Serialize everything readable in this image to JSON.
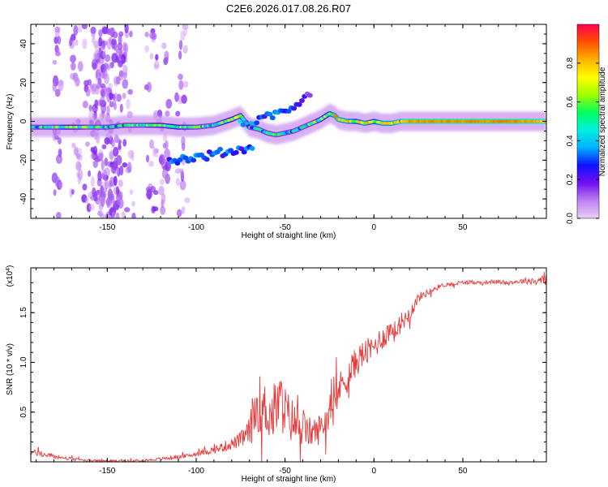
{
  "title": "C2E6.2026.017.08.26.R07",
  "chart_data": [
    {
      "type": "heatmap",
      "xlabel": "Height of straight line (km)",
      "ylabel": "Frequency (Hz)",
      "xlim": [
        -193,
        97
      ],
      "ylim": [
        -50,
        50
      ],
      "xticks": [
        "-150",
        "-100",
        "-50",
        "0",
        "50"
      ],
      "xtick_values": [
        -150,
        -100,
        -50,
        0,
        50
      ],
      "yticks": [
        "40",
        "20",
        "0",
        "-20",
        "-40"
      ],
      "ytick_values": [
        40,
        20,
        0,
        -20,
        -40
      ],
      "colorbar": {
        "label": "Normalized spectral amplitude",
        "range": [
          0,
          1
        ],
        "ticks": [
          "0.0",
          "0.2",
          "0.4",
          "0.6",
          "0.8"
        ],
        "tick_values": [
          0,
          0.2,
          0.4,
          0.6,
          0.8
        ],
        "colors": [
          "#e8d0f8",
          "#c080f0",
          "#7010f0",
          "#1010ff",
          "#00b0ff",
          "#00f0e0",
          "#00ff60",
          "#a0ff00",
          "#ffff00",
          "#ffb000",
          "#ff5000",
          "#ff0050"
        ]
      },
      "main_ridge": {
        "x": [
          -193,
          -180,
          -170,
          -160,
          -150,
          -140,
          -130,
          -120,
          -110,
          -100,
          -90,
          -80,
          -75,
          -70,
          -65,
          -60,
          -55,
          -50,
          -45,
          -40,
          -35,
          -30,
          -25,
          -22,
          -20,
          -15,
          -10,
          -5,
          0,
          5,
          10,
          15,
          20,
          30,
          40,
          50,
          60,
          70,
          80,
          97
        ],
        "y": [
          -3,
          -3,
          -3,
          -3,
          -3,
          -2,
          -2,
          -2,
          -3,
          -3,
          -2,
          1,
          3,
          -3,
          -4,
          -6,
          -7,
          -6,
          -5,
          -3,
          -1,
          1,
          4,
          3,
          1,
          0,
          0,
          -1,
          0,
          -1,
          -1,
          0,
          0,
          0,
          0,
          0,
          0,
          0,
          0,
          0
        ],
        "amplitude": [
          0.45,
          0.5,
          0.55,
          0.5,
          0.45,
          0.45,
          0.5,
          0.55,
          0.55,
          0.5,
          0.5,
          0.6,
          0.55,
          0.4,
          0.4,
          0.45,
          0.45,
          0.4,
          0.4,
          0.45,
          0.5,
          0.55,
          0.65,
          0.7,
          0.7,
          0.7,
          0.65,
          0.7,
          0.65,
          0.7,
          0.7,
          0.75,
          0.85,
          0.85,
          0.85,
          0.85,
          0.85,
          0.85,
          0.85,
          0.8
        ]
      },
      "branch_upper": {
        "x": [
          -75,
          -70,
          -65,
          -60,
          -55,
          -50,
          -45,
          -40,
          -35
        ],
        "y": [
          -2,
          -1,
          0,
          2,
          4,
          6,
          8,
          12,
          16
        ],
        "amplitude": [
          0.4,
          0.35,
          0.35,
          0.3,
          0.3,
          0.3,
          0.3,
          0.2,
          0.15
        ]
      },
      "branch_lower": {
        "x": [
          -115,
          -105,
          -95,
          -85,
          -78,
          -72,
          -68
        ],
        "y": [
          -20,
          -19,
          -18,
          -16,
          -15,
          -14,
          -12
        ],
        "amplitude": [
          0.3,
          0.3,
          0.3,
          0.3,
          0.3,
          0.3,
          0.3
        ]
      },
      "scatter_columns_x": [
        -178,
        -168,
        -160,
        -155,
        -150,
        -145,
        -138,
        -125,
        -118,
        -108
      ]
    },
    {
      "type": "line",
      "xlabel": "Height of straight line (km)",
      "ylabel": "SNR (10 * v/v)",
      "y_multiplier_label": "(x10",
      "y_multiplier_exp": "4",
      "y_multiplier_close": ")",
      "xlim": [
        -193,
        97
      ],
      "ylim": [
        0,
        1.95
      ],
      "xticks": [
        "-150",
        "-100",
        "-50",
        "0",
        "50"
      ],
      "xtick_values": [
        -150,
        -100,
        -50,
        0,
        50
      ],
      "yticks": [
        "0.5",
        "1.0",
        "1.5"
      ],
      "ytick_values": [
        0.5,
        1.0,
        1.5
      ],
      "color": "#e83a3a",
      "x": [
        -193,
        -185,
        -175,
        -165,
        -155,
        -145,
        -135,
        -125,
        -115,
        -105,
        -95,
        -90,
        -85,
        -80,
        -75,
        -70,
        -68,
        -65,
        -62,
        -60,
        -58,
        -55,
        -52,
        -50,
        -48,
        -45,
        -42,
        -40,
        -38,
        -35,
        -32,
        -30,
        -28,
        -25,
        -22,
        -20,
        -18,
        -15,
        -12,
        -10,
        -8,
        -5,
        -2,
        0,
        2,
        5,
        8,
        10,
        12,
        15,
        18,
        20,
        22,
        25,
        28,
        30,
        35,
        40,
        45,
        50,
        55,
        60,
        65,
        70,
        75,
        80,
        85,
        90,
        95,
        97
      ],
      "y": [
        0.1,
        0.07,
        0.04,
        0.02,
        0.01,
        0.01,
        0.01,
        0.02,
        0.04,
        0.06,
        0.1,
        0.12,
        0.15,
        0.18,
        0.22,
        0.3,
        0.45,
        0.6,
        0.5,
        0.55,
        0.45,
        0.55,
        0.6,
        0.5,
        0.45,
        0.4,
        0.35,
        0.35,
        0.3,
        0.3,
        0.3,
        0.35,
        0.4,
        0.5,
        0.6,
        0.7,
        0.8,
        0.85,
        0.95,
        1.0,
        1.05,
        1.1,
        1.12,
        1.15,
        1.2,
        1.25,
        1.3,
        1.35,
        1.3,
        1.4,
        1.45,
        1.5,
        1.55,
        1.65,
        1.68,
        1.7,
        1.75,
        1.78,
        1.79,
        1.8,
        1.81,
        1.8,
        1.81,
        1.81,
        1.8,
        1.81,
        1.82,
        1.82,
        1.83,
        1.83
      ],
      "noise": [
        0.03,
        0.03,
        0.02,
        0.01,
        0.01,
        0.01,
        0.01,
        0.01,
        0.02,
        0.02,
        0.03,
        0.04,
        0.05,
        0.06,
        0.08,
        0.15,
        0.25,
        0.3,
        0.3,
        0.3,
        0.28,
        0.3,
        0.3,
        0.28,
        0.25,
        0.22,
        0.2,
        0.18,
        0.16,
        0.15,
        0.15,
        0.15,
        0.15,
        0.16,
        0.16,
        0.16,
        0.16,
        0.16,
        0.16,
        0.15,
        0.14,
        0.14,
        0.13,
        0.13,
        0.13,
        0.12,
        0.12,
        0.12,
        0.11,
        0.1,
        0.09,
        0.08,
        0.07,
        0.05,
        0.04,
        0.03,
        0.03,
        0.02,
        0.02,
        0.02,
        0.02,
        0.02,
        0.02,
        0.02,
        0.02,
        0.02,
        0.03,
        0.04,
        0.05,
        0.06
      ]
    }
  ]
}
